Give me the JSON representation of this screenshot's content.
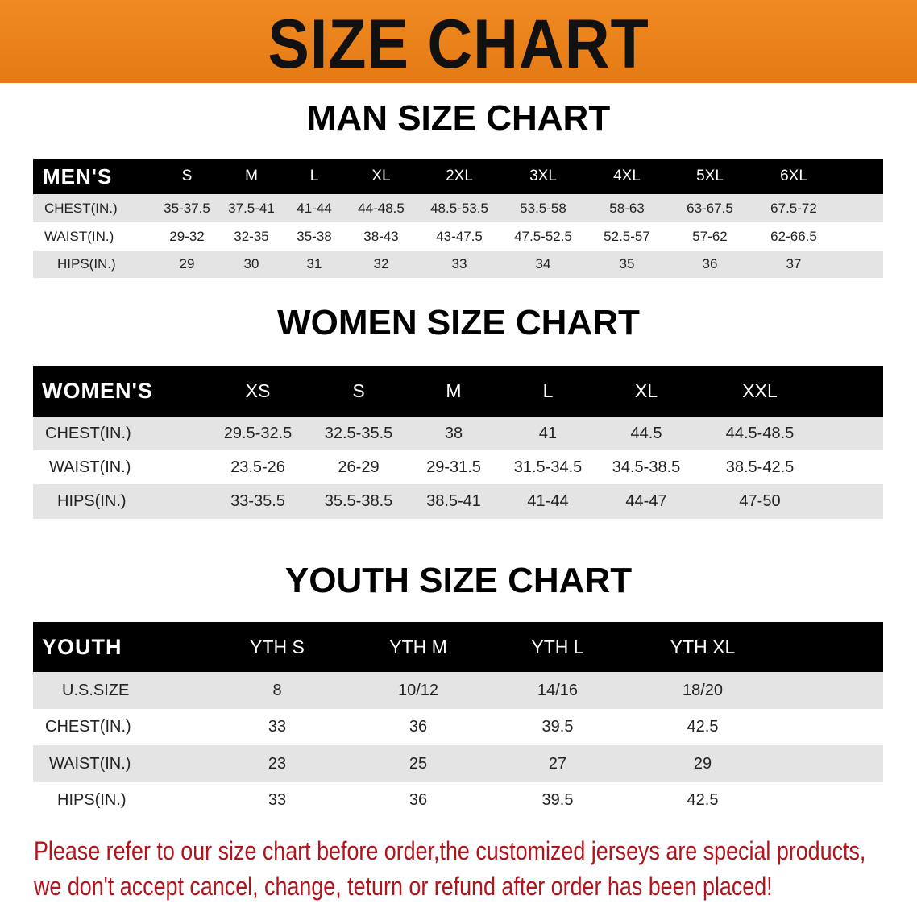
{
  "banner_title": "SIZE CHART",
  "colors": {
    "banner": "#e8801a",
    "header_row": "#000000",
    "stripe": "#e4e4e4",
    "note": "#b3141c"
  },
  "men": {
    "title": "MAN SIZE CHART",
    "header_label": "MEN'S",
    "sizes": [
      "S",
      "M",
      "L",
      "XL",
      "2XL",
      "3XL",
      "4XL",
      "5XL",
      "6XL"
    ],
    "rows": [
      {
        "label": "CHEST(IN.)",
        "values": [
          "35-37.5",
          "37.5-41",
          "41-44",
          "44-48.5",
          "48.5-53.5",
          "53.5-58",
          "58-63",
          "63-67.5",
          "67.5-72"
        ]
      },
      {
        "label": "WAIST(IN.)",
        "values": [
          "29-32",
          "32-35",
          "35-38",
          "38-43",
          "43-47.5",
          "47.5-52.5",
          "52.5-57",
          "57-62",
          "62-66.5"
        ]
      },
      {
        "label": "HIPS(IN.)",
        "values": [
          "29",
          "30",
          "31",
          "32",
          "33",
          "34",
          "35",
          "36",
          "37"
        ]
      }
    ]
  },
  "women": {
    "title": "WOMEN SIZE CHART",
    "header_label": "WOMEN'S",
    "sizes": [
      "XS",
      "S",
      "M",
      "L",
      "XL",
      "XXL"
    ],
    "rows": [
      {
        "label": "CHEST(IN.)",
        "values": [
          "29.5-32.5",
          "32.5-35.5",
          "38",
          "41",
          "44.5",
          "44.5-48.5"
        ]
      },
      {
        "label": "WAIST(IN.)",
        "values": [
          "23.5-26",
          "26-29",
          "29-31.5",
          "31.5-34.5",
          "34.5-38.5",
          "38.5-42.5"
        ]
      },
      {
        "label": "HIPS(IN.)",
        "values": [
          "33-35.5",
          "35.5-38.5",
          "38.5-41",
          "41-44",
          "44-47",
          "47-50"
        ]
      }
    ]
  },
  "youth": {
    "title": "YOUTH SIZE CHART",
    "header_label": "YOUTH",
    "sizes": [
      "YTH S",
      "YTH M",
      "YTH L",
      "YTH XL"
    ],
    "rows": [
      {
        "label": "U.S.SIZE",
        "values": [
          "8",
          "10/12",
          "14/16",
          "18/20"
        ]
      },
      {
        "label": "CHEST(IN.)",
        "values": [
          "33",
          "36",
          "39.5",
          "42.5"
        ]
      },
      {
        "label": "WAIST(IN.)",
        "values": [
          "23",
          "25",
          "27",
          "29"
        ]
      },
      {
        "label": "HIPS(IN.)",
        "values": [
          "33",
          "36",
          "39.5",
          "42.5"
        ]
      }
    ]
  },
  "notice": {
    "line1": "Please refer to our size chart before order,the customized jerseys are special products,",
    "line2": "we don't accept cancel, change, teturn or refund after order has been placed!"
  }
}
